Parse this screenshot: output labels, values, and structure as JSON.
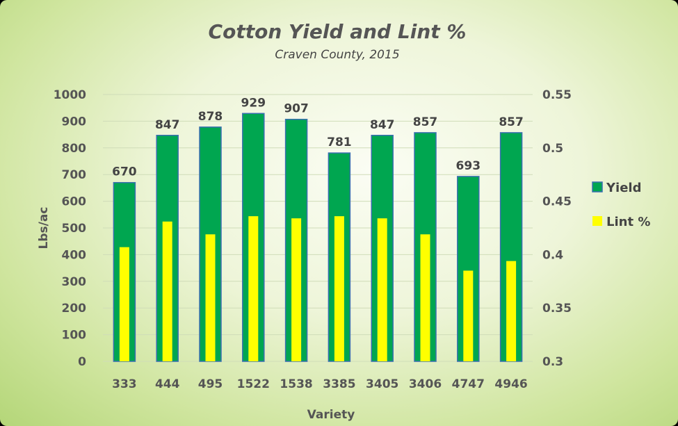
{
  "chart_data": {
    "type": "bar",
    "title": "Cotton Yield and Lint %",
    "subtitle": "Craven County, 2015",
    "xlabel": "Variety",
    "ylabel": "Lbs/ac",
    "categories": [
      "333",
      "444",
      "495",
      "1522",
      "1538",
      "3385",
      "3405",
      "3406",
      "4747",
      "4946"
    ],
    "series": [
      {
        "name": "Yield",
        "axis": "left",
        "color": "#00a650",
        "values": [
          670,
          847,
          878,
          929,
          907,
          781,
          847,
          857,
          693,
          857
        ],
        "data_labels": [
          "670",
          "847",
          "878",
          "929",
          "907",
          "781",
          "847",
          "857",
          "693",
          "857"
        ]
      },
      {
        "name": "Lint %",
        "axis": "right",
        "color": "#ffff00",
        "values": [
          0.407,
          0.431,
          0.419,
          0.436,
          0.434,
          0.436,
          0.434,
          0.419,
          0.385,
          0.394
        ]
      }
    ],
    "ylim": [
      0,
      1000
    ],
    "y_ticks": [
      "0",
      "100",
      "200",
      "300",
      "400",
      "500",
      "600",
      "700",
      "800",
      "900",
      "1000"
    ],
    "y2lim": [
      0.3,
      0.55
    ],
    "y2_ticks": [
      "0.3",
      "0.35",
      "0.4",
      "0.45",
      "0.5",
      "0.55"
    ],
    "grid": true,
    "legend_position": "right"
  }
}
